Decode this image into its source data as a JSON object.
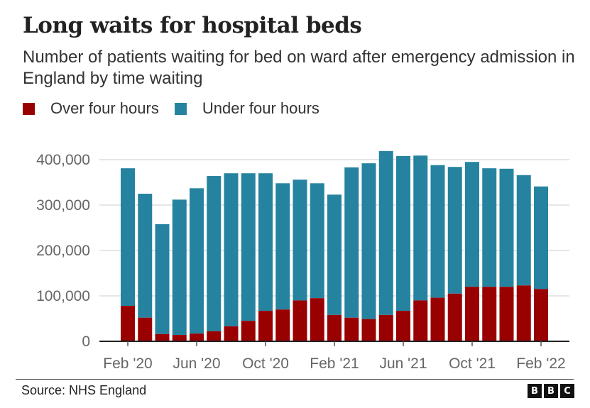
{
  "header": {
    "title": "Long waits for hospital beds",
    "subtitle": "Number of patients waiting for bed on ward after emergency admission in England by time waiting"
  },
  "footer": {
    "source": "Source: NHS England",
    "logo_letters": [
      "B",
      "B",
      "C"
    ]
  },
  "colors": {
    "over": "#990000",
    "under": "#2683a0",
    "grid": "#dddddd",
    "axis": "#222222"
  },
  "chart_data": {
    "type": "bar",
    "stacked": true,
    "title": "Long waits for hospital beds",
    "xlabel": "",
    "ylabel": "",
    "ylim": [
      0,
      400000
    ],
    "y_ticks": [
      0,
      100000,
      200000,
      300000,
      400000
    ],
    "y_tick_labels": [
      "0",
      "100,000",
      "200,000",
      "300,000",
      "400,000"
    ],
    "x_tick_labels": [
      "Feb '20",
      "Jun '20",
      "Oct '20",
      "Feb '21",
      "Jun '21",
      "Oct '21",
      "Feb '22"
    ],
    "x_tick_indices": [
      0,
      4,
      8,
      12,
      16,
      20,
      24
    ],
    "grid": true,
    "legend_position": "top-left",
    "categories": [
      "Feb '20",
      "",
      "",
      "",
      "Jun '20",
      "",
      "",
      "",
      "Oct '20",
      "",
      "",
      "",
      "Feb '21",
      "",
      "",
      "",
      "Jun '21",
      "",
      "",
      "",
      "Oct '21",
      "",
      "",
      "",
      "Feb '22"
    ],
    "series": [
      {
        "name": "Over four hours",
        "color": "#990000",
        "values": [
          78000,
          52000,
          16000,
          14000,
          17000,
          22000,
          33000,
          45000,
          67000,
          70000,
          90000,
          95000,
          58000,
          52000,
          49000,
          58000,
          67000,
          90000,
          96000,
          105000,
          120000,
          120000,
          120000,
          123000,
          115000
        ]
      },
      {
        "name": "Under four hours",
        "color": "#2683a0",
        "totals": [
          381000,
          325000,
          258000,
          312000,
          337000,
          364000,
          370000,
          370000,
          370000,
          348000,
          356000,
          348000,
          323000,
          383000,
          392000,
          419000,
          408000,
          409000,
          388000,
          384000,
          395000,
          381000,
          380000,
          366000,
          341000
        ]
      }
    ]
  }
}
